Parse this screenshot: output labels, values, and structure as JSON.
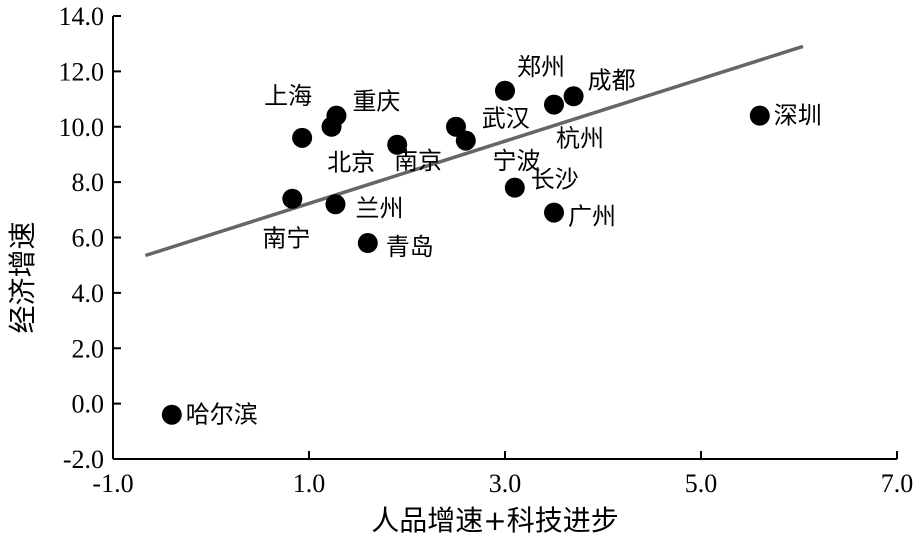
{
  "chart_data": {
    "type": "scatter",
    "title": "",
    "xlabel": "人品增速+科技进步",
    "ylabel": "经济增速",
    "xlim": [
      -1.0,
      7.0
    ],
    "ylim": [
      -2.0,
      14.0
    ],
    "xticks": [
      -1.0,
      1.0,
      3.0,
      5.0,
      7.0
    ],
    "xtick_labels": [
      "-1.0",
      "1.0",
      "3.0",
      "5.0",
      "7.0"
    ],
    "yticks": [
      -2.0,
      0.0,
      2.0,
      4.0,
      6.0,
      8.0,
      10.0,
      12.0,
      14.0
    ],
    "ytick_labels": [
      "-2.0",
      "0.0",
      "2.0",
      "4.0",
      "6.0",
      "8.0",
      "10.0",
      "12.0",
      "14.0"
    ],
    "grid": false,
    "points": [
      {
        "label": "哈尔滨",
        "x": -0.4,
        "y": -0.4
      },
      {
        "label": "南宁",
        "x": 0.83,
        "y": 7.4
      },
      {
        "label": "上海",
        "x": 0.93,
        "y": 9.6
      },
      {
        "label": "",
        "x": 1.23,
        "y": 10.0
      },
      {
        "label": "重庆",
        "x": 1.28,
        "y": 10.4
      },
      {
        "label": "兰州",
        "x": 1.27,
        "y": 7.2
      },
      {
        "label": "青岛",
        "x": 1.6,
        "y": 5.8
      },
      {
        "label": "北京",
        "x": 1.9,
        "y": 9.35
      },
      {
        "label": "南京",
        "x": 2.5,
        "y": 10.0
      },
      {
        "label": "武汉",
        "x": 2.6,
        "y": 9.5
      },
      {
        "label": "郑州",
        "x": 3.0,
        "y": 11.3
      },
      {
        "label": "长沙",
        "x": 3.1,
        "y": 7.8
      },
      {
        "label": "杭州",
        "x": 3.5,
        "y": 10.8
      },
      {
        "label": "成都",
        "x": 3.7,
        "y": 11.1
      },
      {
        "label": "广州",
        "x": 3.5,
        "y": 6.9
      },
      {
        "label": "深圳",
        "x": 5.6,
        "y": 10.4
      }
    ],
    "trendline": {
      "x": [
        -0.67,
        6.04
      ],
      "y": [
        5.35,
        12.9
      ]
    },
    "extra_labels": [
      {
        "text": "宁波",
        "x": 2.73,
        "y": 9.2
      }
    ]
  }
}
